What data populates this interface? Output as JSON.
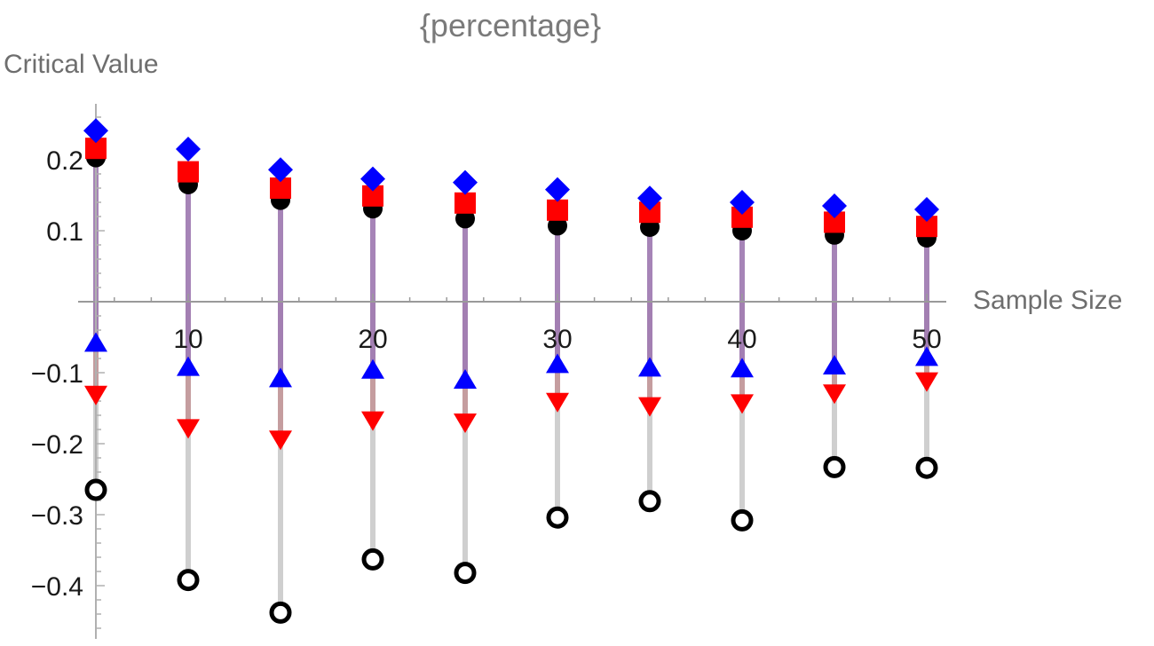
{
  "chart_data": {
    "type": "scatter",
    "subtype": "stem",
    "title": "{percentage}",
    "xlabel": "Sample Size",
    "ylabel": "Critical Value",
    "x": [
      5,
      10,
      15,
      20,
      25,
      30,
      35,
      40,
      45,
      50
    ],
    "xticks": [
      10,
      20,
      30,
      40,
      50
    ],
    "xtick_labels": [
      "10",
      "20",
      "30",
      "40",
      "50"
    ],
    "yticks": [
      -0.4,
      -0.3,
      -0.2,
      -0.1,
      0.1,
      0.2
    ],
    "ytick_labels": [
      "−0.4",
      "−0.3",
      "−0.2",
      "−0.1",
      "0.1",
      "0.2"
    ],
    "xlim": [
      4,
      51
    ],
    "ylim": [
      -0.47,
      0.28
    ],
    "grid": false,
    "legend": "none",
    "series": [
      {
        "name": "blue-diamond",
        "marker": "diamond",
        "color": "#0000ff",
        "values": [
          0.241,
          0.215,
          0.186,
          0.173,
          0.168,
          0.158,
          0.146,
          0.14,
          0.135,
          0.13
        ]
      },
      {
        "name": "red-square",
        "marker": "square",
        "color": "#ff0000",
        "values": [
          0.216,
          0.183,
          0.16,
          0.149,
          0.139,
          0.129,
          0.126,
          0.119,
          0.112,
          0.106
        ]
      },
      {
        "name": "black-filled-circle",
        "marker": "filled-circle",
        "color": "#000000",
        "stem_color": "#a17db3",
        "values": [
          0.203,
          0.165,
          0.143,
          0.131,
          0.117,
          0.107,
          0.105,
          0.1,
          0.094,
          0.09
        ]
      },
      {
        "name": "blue-up-triangle",
        "marker": "triangle-up",
        "color": "#0000ff",
        "stem_color": "#a17db3",
        "values": [
          -0.058,
          -0.092,
          -0.108,
          -0.096,
          -0.11,
          -0.088,
          -0.093,
          -0.094,
          -0.09,
          -0.078
        ]
      },
      {
        "name": "red-down-triangle",
        "marker": "triangle-down",
        "color": "#ff0000",
        "stem_color": "#c49a9c",
        "values": [
          -0.131,
          -0.178,
          -0.194,
          -0.167,
          -0.17,
          -0.141,
          -0.147,
          -0.143,
          -0.129,
          -0.112
        ]
      },
      {
        "name": "black-open-circle",
        "marker": "open-circle",
        "color": "#000000",
        "stem_color": "#cccccc",
        "values": [
          -0.265,
          -0.392,
          -0.438,
          -0.363,
          -0.382,
          -0.304,
          -0.281,
          -0.308,
          -0.233,
          -0.234
        ]
      }
    ]
  },
  "labels": {
    "title": "{percentage}",
    "xlabel": "Sample Size",
    "ylabel": "Critical Value"
  }
}
